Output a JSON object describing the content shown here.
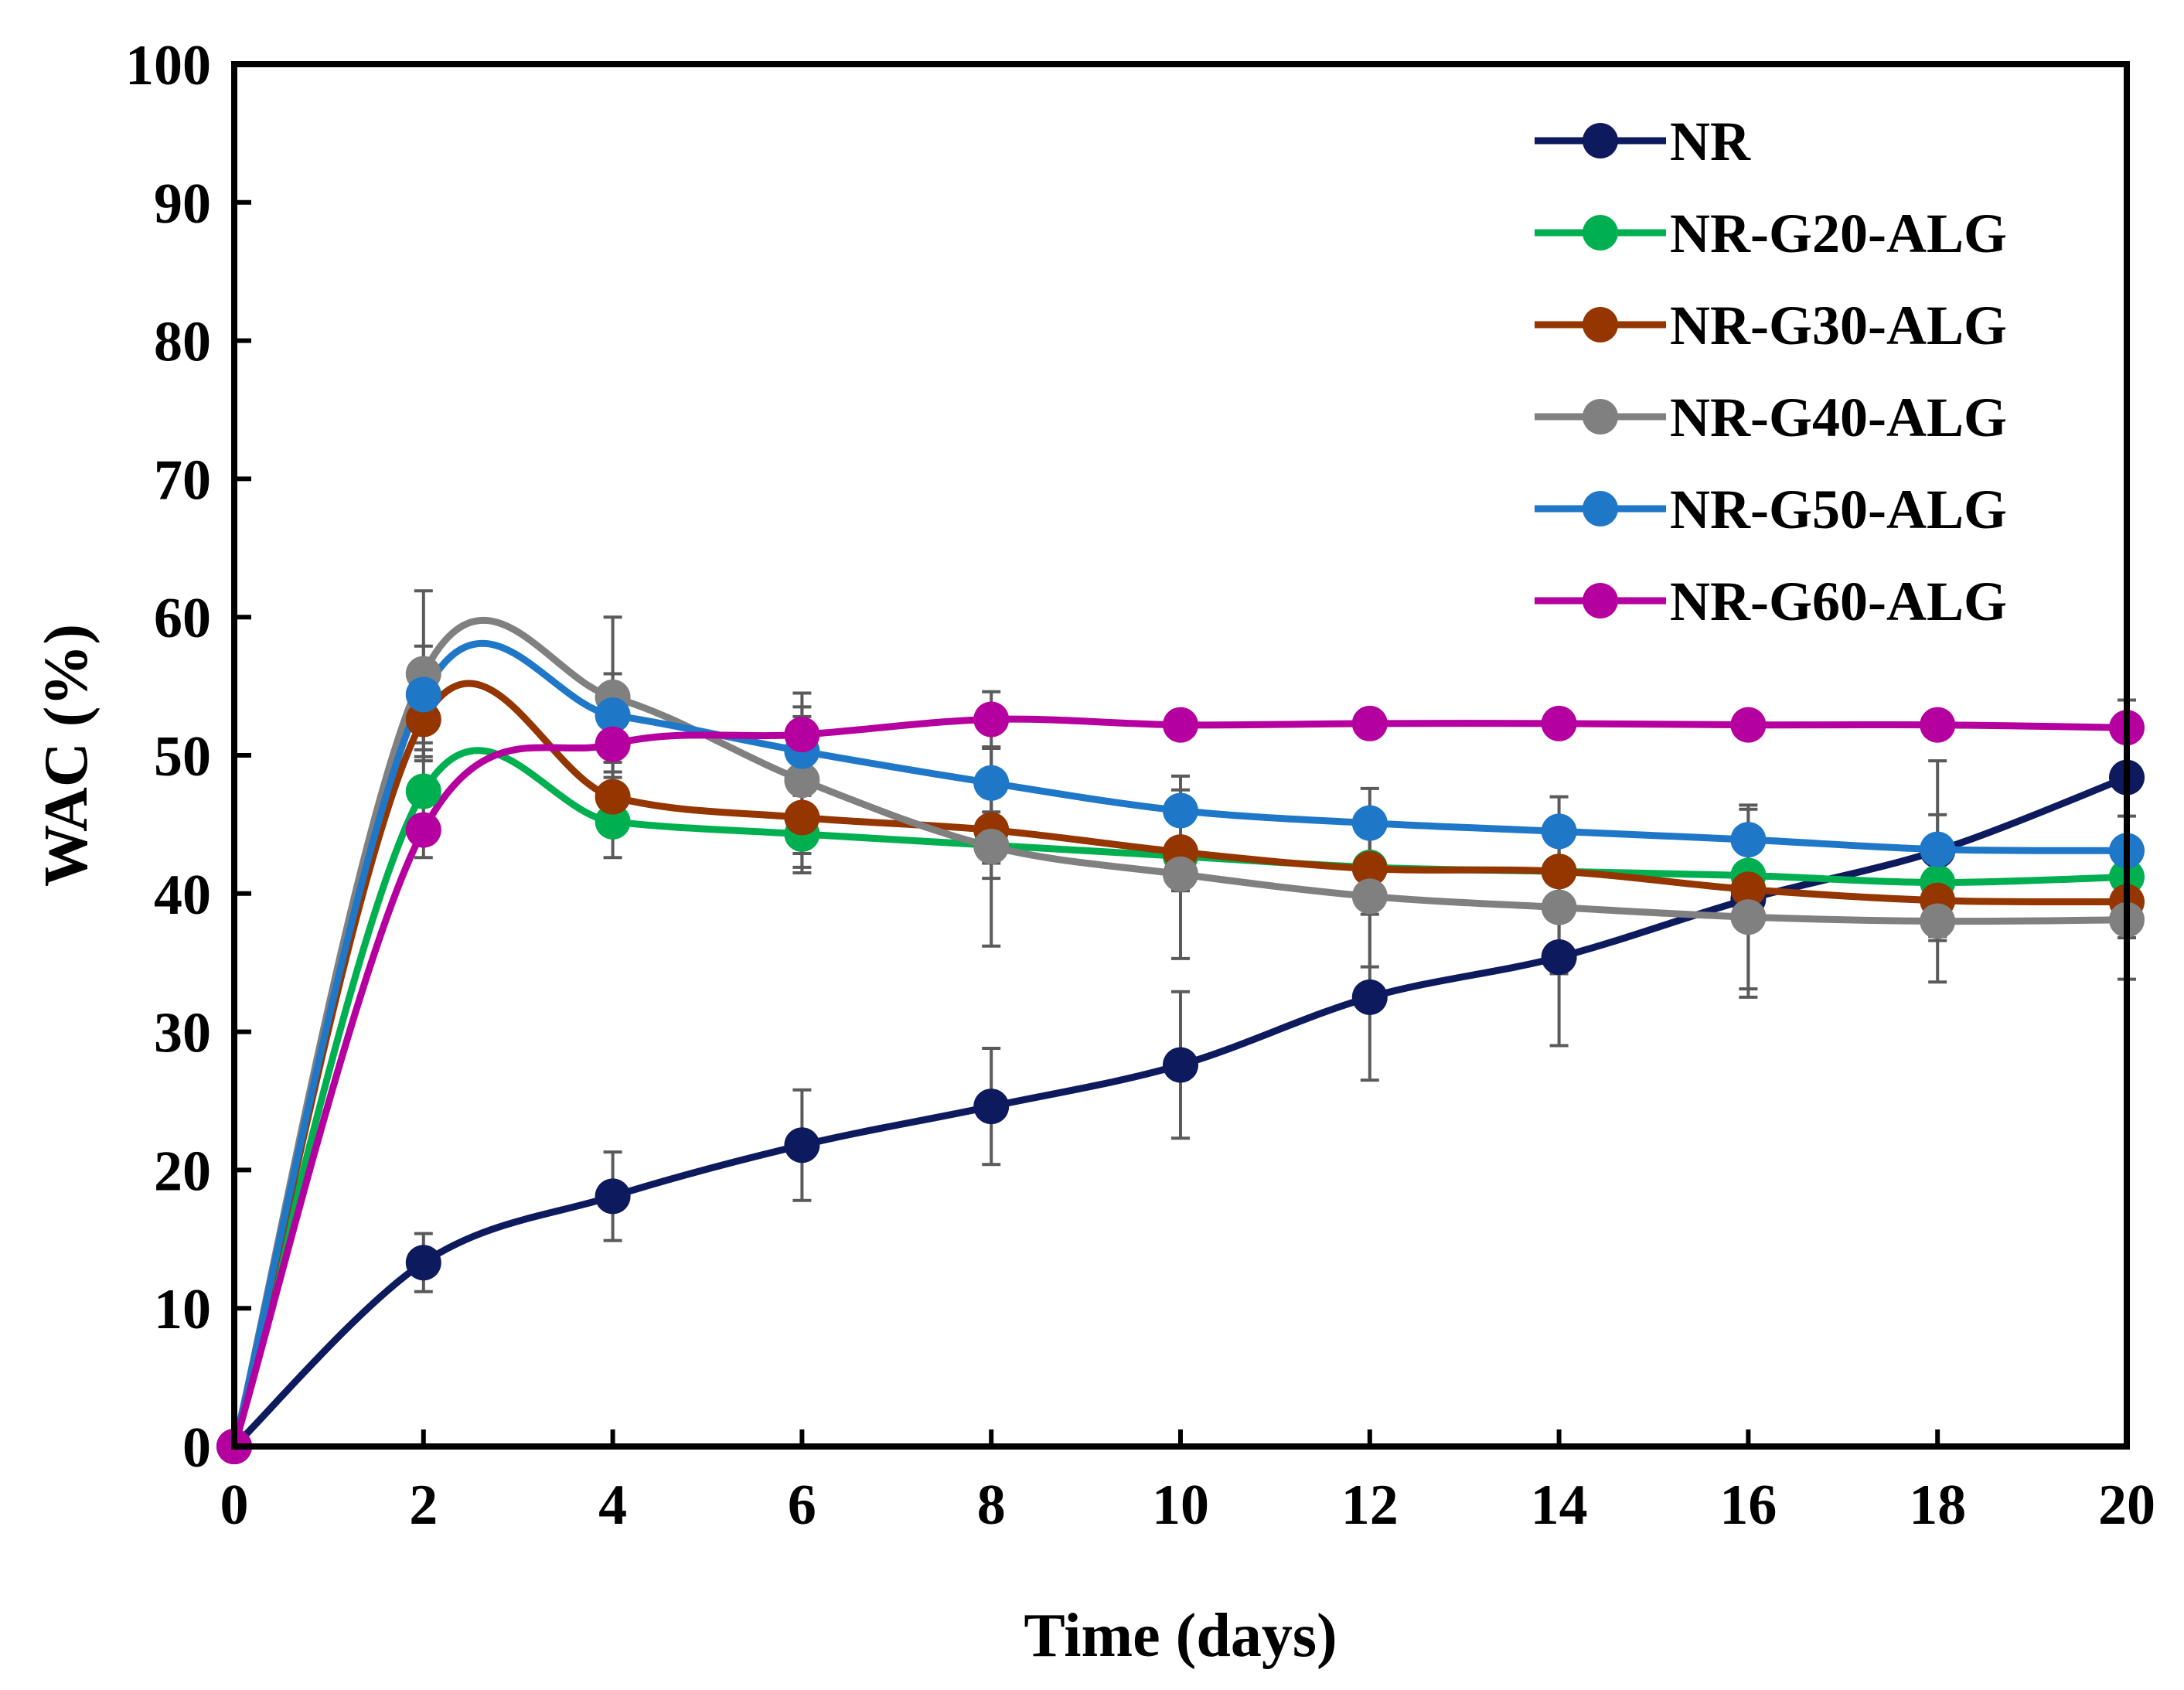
{
  "chart_data": {
    "type": "line",
    "title": "",
    "xlabel": "Time (days)",
    "ylabel": "WAC (%)",
    "xlim": [
      0,
      20
    ],
    "ylim": [
      0,
      100
    ],
    "x_ticks": [
      "0",
      "2",
      "4",
      "6",
      "8",
      "10",
      "12",
      "14",
      "16",
      "18",
      "20"
    ],
    "y_ticks": [
      "0",
      "10",
      "20",
      "30",
      "40",
      "50",
      "60",
      "70",
      "80",
      "90",
      "100"
    ],
    "legend_position": "top-right",
    "grid": false,
    "x": [
      0,
      2,
      4,
      6,
      8,
      10,
      12,
      14,
      16,
      18,
      20
    ],
    "series": [
      {
        "name": "NR",
        "color": "#0d1b5e",
        "values": [
          0,
          13.3,
          18.1,
          21.8,
          24.6,
          27.6,
          32.5,
          35.4,
          39.6,
          43.1,
          48.4
        ],
        "errors": [
          0,
          2.1,
          3.2,
          4.0,
          4.2,
          5.3,
          6.0,
          6.4,
          6.5,
          6.5,
          5.6
        ]
      },
      {
        "name": "NR-G20-ALG",
        "color": "#00b050",
        "values": [
          0,
          47.4,
          45.2,
          44.3,
          43.5,
          42.7,
          41.9,
          41.6,
          41.3,
          40.8,
          41.2
        ],
        "errors": [
          0,
          3.0,
          2.6,
          2.8,
          2.4,
          2.5,
          2.4,
          2.4,
          2.4,
          2.3,
          2.4
        ]
      },
      {
        "name": "NR-G30-ALG",
        "color": "#953500",
        "values": [
          0,
          52.6,
          47.0,
          45.5,
          44.6,
          43.0,
          41.8,
          41.6,
          40.3,
          39.5,
          39.4
        ],
        "errors": [
          0,
          3.0,
          2.5,
          2.6,
          2.4,
          2.5,
          2.6,
          2.5,
          2.6,
          2.6,
          2.6
        ]
      },
      {
        "name": "NR-G40-ALG",
        "color": "#808080",
        "values": [
          0,
          55.9,
          54.2,
          48.2,
          43.4,
          41.4,
          39.8,
          39.0,
          38.3,
          38.0,
          38.1
        ],
        "errors": [
          0,
          6.0,
          5.8,
          6.3,
          7.2,
          6.1,
          5.1,
          4.8,
          5.8,
          4.4,
          4.3
        ]
      },
      {
        "name": "NR-G50-ALG",
        "color": "#1f77c8",
        "values": [
          0,
          54.4,
          52.9,
          50.3,
          48.0,
          46.0,
          45.1,
          44.5,
          43.9,
          43.2,
          43.1
        ],
        "errors": [
          0,
          3.5,
          3.0,
          2.5,
          2.5,
          2.5,
          2.5,
          2.5,
          2.5,
          2.5,
          2.5
        ]
      },
      {
        "name": "NR-G60-ALG",
        "color": "#b5009f",
        "values": [
          0,
          44.6,
          50.8,
          51.5,
          52.6,
          52.2,
          52.3,
          52.3,
          52.2,
          52.2,
          52.0
        ],
        "errors": [
          0,
          2.0,
          2.0,
          2.0,
          2.0,
          1.0,
          1.0,
          1.0,
          1.0,
          1.0,
          1.0
        ]
      }
    ]
  }
}
